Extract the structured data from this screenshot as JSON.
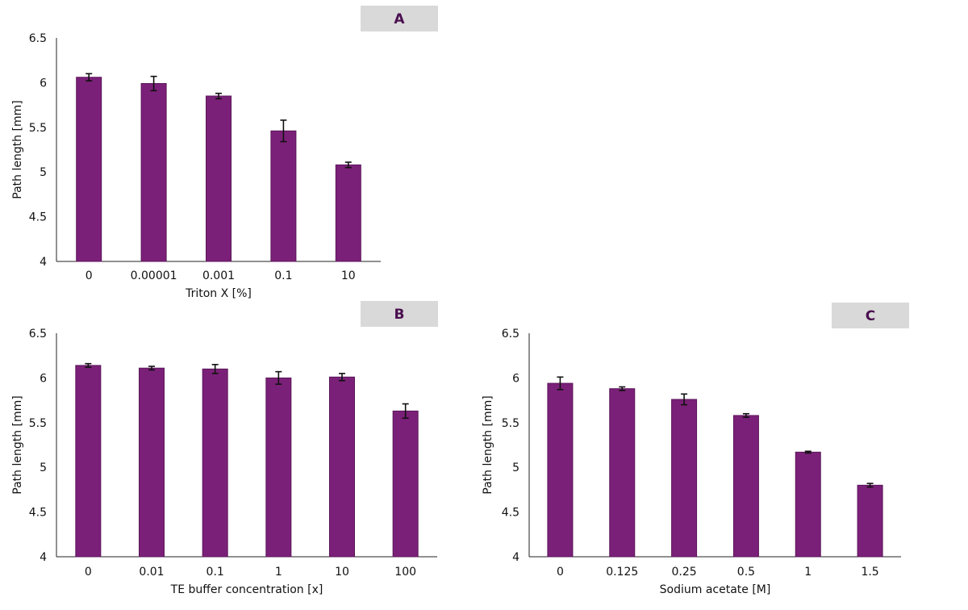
{
  "bar_color": "#7b2078",
  "bar_edge_color": "#5a1559",
  "panel_label_bg": "#d9d9d9",
  "panel_label_text_color": "#4a0f4f",
  "chart_data": [
    {
      "type": "bar",
      "panel_label": "A",
      "categories": [
        "0",
        "0.00001",
        "0.001",
        "0.1",
        "10"
      ],
      "values": [
        6.06,
        5.99,
        5.85,
        5.46,
        5.08
      ],
      "errors": [
        0.04,
        0.08,
        0.03,
        0.12,
        0.03
      ],
      "xlabel": "Triton X [%]",
      "ylabel": "Path length [mm]",
      "ylim": [
        4,
        6.5
      ],
      "yticks": [
        "4",
        "4.5",
        "5",
        "5.5",
        "6",
        "6.5"
      ],
      "grid": false
    },
    {
      "type": "bar",
      "panel_label": "B",
      "categories": [
        "0",
        "0.01",
        "0.1",
        "1",
        "10",
        "100"
      ],
      "values": [
        6.14,
        6.11,
        6.1,
        6.0,
        6.01,
        5.63
      ],
      "errors": [
        0.02,
        0.02,
        0.05,
        0.07,
        0.04,
        0.08
      ],
      "xlabel": "TE buffer concentration [x]",
      "ylabel": "Path length [mm]",
      "ylim": [
        4,
        6.5
      ],
      "yticks": [
        "4",
        "4.5",
        "5",
        "5.5",
        "6",
        "6.5"
      ],
      "grid": false
    },
    {
      "type": "bar",
      "panel_label": "C",
      "categories": [
        "0",
        "0.125",
        "0.25",
        "0.5",
        "1",
        "1.5"
      ],
      "values": [
        5.94,
        5.88,
        5.76,
        5.58,
        5.17,
        4.8
      ],
      "errors": [
        0.07,
        0.02,
        0.06,
        0.02,
        0.01,
        0.02
      ],
      "xlabel": "Sodium acetate [M]",
      "ylabel": "Path length [mm]",
      "ylim": [
        4,
        6.5
      ],
      "yticks": [
        "4",
        "4.5",
        "5",
        "5.5",
        "6",
        "6.5"
      ],
      "grid": false
    }
  ]
}
